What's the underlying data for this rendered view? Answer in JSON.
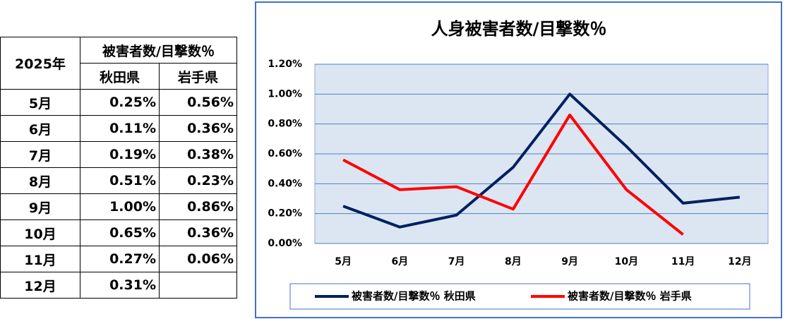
{
  "table": {
    "header": {
      "year": "2025年",
      "group": "被害者数/目撃数％",
      "columns": [
        "秋田県",
        "岩手県"
      ]
    },
    "rows": [
      [
        "5月",
        "0.25%",
        "0.56%"
      ],
      [
        "6月",
        "0.11%",
        "0.36%"
      ],
      [
        "7月",
        "0.19%",
        "0.38%"
      ],
      [
        "8月",
        "0.51%",
        "0.23%"
      ],
      [
        "9月",
        "1.00%",
        "0.86%"
      ],
      [
        "10月",
        "0.65%",
        "0.36%"
      ],
      [
        "11月",
        "0.27%",
        "0.06%"
      ],
      [
        "12月",
        "0.31%"
      ]
    ]
  },
  "chart_data": {
    "type": "line",
    "title": "人身被害者数/目撃数％",
    "categories": [
      "5月",
      "6月",
      "7月",
      "8月",
      "9月",
      "10月",
      "11月",
      "12月"
    ],
    "series": [
      {
        "name": "被害者数/目撃数％ 秋田県",
        "color": "#002060",
        "values": [
          0.25,
          0.11,
          0.19,
          0.51,
          1.0,
          0.65,
          0.27,
          0.31
        ]
      },
      {
        "name": "被害者数/目撃数％ 岩手県",
        "color": "#ff0000",
        "values": [
          0.56,
          0.36,
          0.38,
          0.23,
          0.86,
          0.36,
          0.06,
          null
        ]
      }
    ],
    "ylim": [
      0,
      1.2
    ],
    "yticks": [
      {
        "value": 0,
        "label": "0.00%"
      },
      {
        "value": 0.2,
        "label": "0.20%"
      },
      {
        "value": 0.4,
        "label": "0.40%"
      },
      {
        "value": 0.6,
        "label": "0.60%"
      },
      {
        "value": 0.8,
        "label": "0.80%"
      },
      {
        "value": 1.0,
        "label": "1.00%"
      },
      {
        "value": 1.2,
        "label": "1.20%"
      }
    ],
    "grid": true,
    "legend": "bottom"
  }
}
